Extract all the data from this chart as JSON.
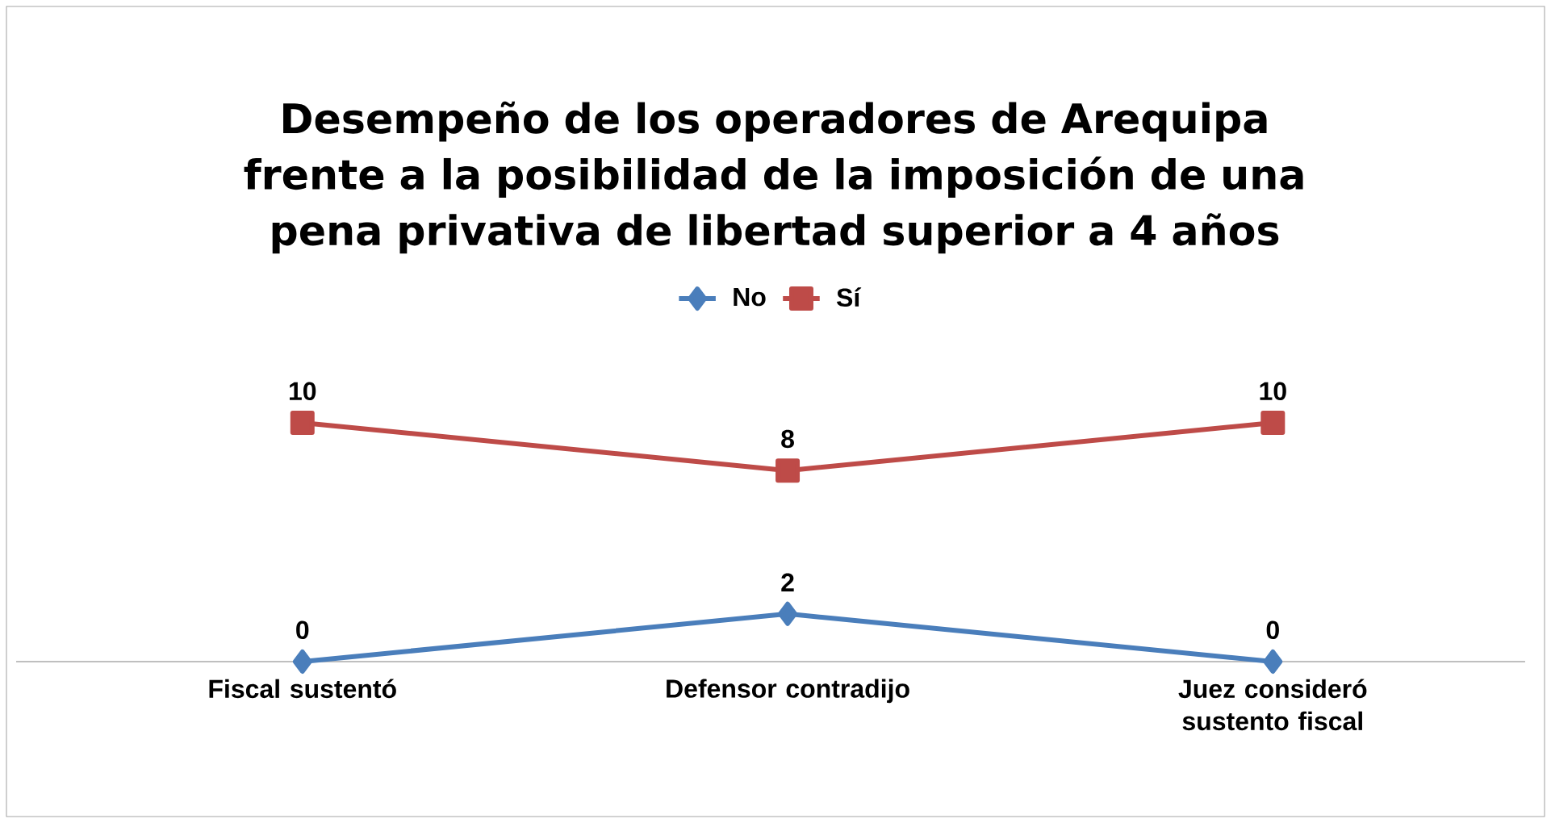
{
  "chart_data": {
    "type": "line",
    "title": "Desempeño de los operadores de Arequipa frente a la posibilidad de la imposición de una pena privativa de libertad superior a 4 años",
    "categories": [
      "Fiscal sustentó",
      "Defensor contradijo",
      "Juez consideró sustento fiscal"
    ],
    "series": [
      {
        "name": "No",
        "color": "#4a7ebb",
        "values": [
          0,
          2,
          0
        ],
        "marker": "diamond"
      },
      {
        "name": "Sí",
        "color": "#be4b48",
        "values": [
          10,
          8,
          10
        ],
        "marker": "square"
      }
    ],
    "data_labels": true,
    "legend": "top"
  }
}
